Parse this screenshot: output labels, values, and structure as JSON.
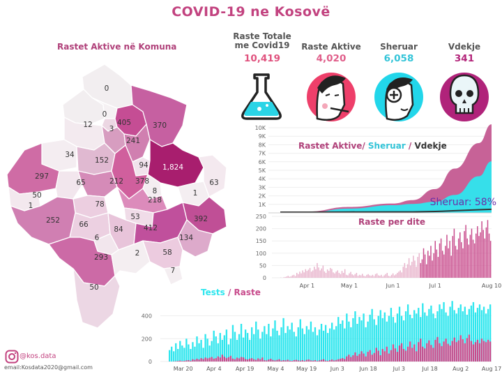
{
  "title": "COVID-19 ne Kosovë",
  "map": {
    "title": "Rastet Aktive në Komuna",
    "values": [
      "0",
      "0",
      "12",
      "3",
      "405",
      "370",
      "34",
      "241",
      "152",
      "94",
      "1,824",
      "297",
      "65",
      "212",
      "378",
      "63",
      "50",
      "8",
      "1",
      "1",
      "78",
      "218",
      "252",
      "66",
      "53",
      "392",
      "84",
      "412",
      "6",
      "134",
      "293",
      "2",
      "58",
      "7",
      "50"
    ]
  },
  "stats": [
    {
      "label_line1": "Raste Totale",
      "label_line2": "me Covid19",
      "value": "10,419",
      "color": "#e0527e",
      "icon": "flask-icon"
    },
    {
      "label_line1": "Raste Aktive",
      "label_line2": "",
      "value": "4,020",
      "color": "#e05e8a",
      "icon": "sick-face-icon"
    },
    {
      "label_line1": "Sheruar",
      "label_line2": "",
      "value": "6,058",
      "color": "#33c4d8",
      "icon": "healed-face-icon"
    },
    {
      "label_line1": "Vdekje",
      "label_line2": "",
      "value": "341",
      "color": "#b3247a",
      "icon": "skull-icon"
    }
  ],
  "footer": {
    "instagram": "@kos.data",
    "email": "email:Kosdata2020@gmail.com"
  },
  "chart_data": [
    {
      "type": "area",
      "title_parts": [
        "Rastet Aktive/",
        "Sheruar",
        "/",
        "Vdekje"
      ],
      "title_colors": [
        "#b0417a",
        "#33c4d8",
        "#b0417a",
        "#333333"
      ],
      "ylim": [
        0,
        10000
      ],
      "y_ticks": [
        "1K",
        "2K",
        "3K",
        "4K",
        "5K",
        "6K",
        "7K",
        "8K",
        "9K",
        "10K"
      ],
      "annotation": "Sheruar: 58%",
      "series": [
        {
          "name": "Rastet Aktive",
          "color": "#c45a91",
          "x": [
            "Mar 13",
            "Apr 1",
            "May 1",
            "Jun 1",
            "Jun 15",
            "Jul 1",
            "Jul 15",
            "Aug 1",
            "Aug 10"
          ],
          "values": [
            0,
            150,
            700,
            1100,
            1500,
            2800,
            5200,
            8200,
            10400
          ]
        },
        {
          "name": "Sheruar",
          "color": "#2ee6ee",
          "x": [
            "Mar 13",
            "Apr 1",
            "May 1",
            "Jun 1",
            "Jun 15",
            "Jul 1",
            "Jul 15",
            "Aug 1",
            "Aug 10"
          ],
          "values": [
            0,
            20,
            500,
            900,
            1050,
            1300,
            2100,
            4300,
            6058
          ]
        },
        {
          "name": "Vdekje",
          "color": "#333333",
          "x": [
            "Mar 13",
            "Apr 1",
            "May 1",
            "Jun 1",
            "Jun 15",
            "Jul 1",
            "Jul 15",
            "Aug 1",
            "Aug 10"
          ],
          "values": [
            0,
            5,
            25,
            30,
            35,
            80,
            170,
            290,
            341
          ]
        }
      ]
    },
    {
      "type": "bar",
      "title": "Raste per dite",
      "ylim": [
        0,
        250
      ],
      "y_ticks": [
        "0",
        "50",
        "100",
        "150",
        "200",
        "250"
      ],
      "x_ticks": [
        "Apr 1",
        "May 1",
        "Jun 1",
        "Jul 1",
        "Aug 10"
      ],
      "start": "Mar 13",
      "end": "Aug 10",
      "series": [
        {
          "name": "Raste",
          "color": "#c84b8c",
          "light_color": "#e8b4cc"
        }
      ],
      "values": [
        1,
        0,
        2,
        3,
        5,
        8,
        4,
        6,
        10,
        12,
        7,
        20,
        15,
        25,
        18,
        30,
        22,
        35,
        28,
        33,
        40,
        25,
        30,
        45,
        35,
        60,
        42,
        30,
        38,
        50,
        26,
        20,
        34,
        28,
        40,
        36,
        22,
        18,
        25,
        30,
        20,
        15,
        28,
        20,
        35,
        12,
        10,
        18,
        24,
        14,
        10,
        15,
        20,
        8,
        12,
        10,
        16,
        8,
        6,
        12,
        15,
        10,
        8,
        12,
        7,
        15,
        18,
        10,
        8,
        12,
        5,
        10,
        15,
        20,
        8,
        6,
        12,
        18,
        10,
        14,
        20,
        25,
        30,
        22,
        45,
        60,
        40,
        55,
        80,
        50,
        65,
        90,
        70,
        45,
        85,
        100,
        60,
        75,
        120,
        95,
        55,
        110,
        90,
        130,
        70,
        100,
        150,
        115,
        85,
        140,
        160,
        110,
        95,
        130,
        175,
        120,
        150,
        90,
        170,
        200,
        130,
        115,
        160,
        185,
        145,
        120,
        190,
        215,
        160,
        135,
        175,
        200,
        155,
        140,
        180,
        210,
        170,
        185,
        230,
        195,
        160,
        205,
        235,
        180,
        150
      ]
    },
    {
      "type": "bar",
      "title_parts": [
        "Tests",
        "/",
        "Raste"
      ],
      "title_colors": [
        "#2ee6ee",
        "#c84b8c",
        "#c84b8c"
      ],
      "ylim": [
        0,
        550
      ],
      "y_ticks": [
        "0",
        "200",
        "400"
      ],
      "x_ticks": [
        "Mar 20",
        "Apr 4",
        "Apr 19",
        "May 4",
        "May 19",
        "Jun 3",
        "Jun 18",
        "Jul 3",
        "Jul 18",
        "Aug 2",
        "Aug 17"
      ],
      "start": "Mar 13",
      "end": "Aug 17",
      "series": [
        {
          "name": "Tests",
          "color": "#2ee6ee",
          "values": [
            100,
            130,
            90,
            160,
            110,
            180,
            140,
            120,
            200,
            150,
            110,
            170,
            130,
            220,
            160,
            190,
            120,
            240,
            200,
            140,
            180,
            270,
            220,
            160,
            250,
            190,
            230,
            280,
            150,
            200,
            320,
            260,
            190,
            240,
            330,
            210,
            280,
            250,
            190,
            300,
            240,
            350,
            280,
            200,
            260,
            310,
            240,
            330,
            220,
            290,
            360,
            270,
            230,
            300,
            380,
            250,
            310,
            280,
            340,
            260,
            220,
            300,
            370,
            290,
            240,
            310,
            280,
            350,
            260,
            300,
            230,
            280,
            330,
            270,
            320,
            250,
            290,
            340,
            280,
            310,
            390,
            330,
            360,
            290,
            420,
            350,
            300,
            380,
            440,
            330,
            390,
            360,
            420,
            300,
            350,
            410,
            460,
            370,
            320,
            400,
            450,
            380,
            430,
            350,
            400,
            470,
            390,
            340,
            420,
            480,
            400,
            360,
            440,
            500,
            410,
            380,
            450,
            420,
            470,
            390,
            510,
            430,
            400,
            460,
            490,
            420,
            380,
            440,
            500,
            460,
            520,
            430,
            400,
            480,
            530,
            450,
            420,
            470,
            500,
            440,
            480,
            410,
            460,
            490,
            520,
            430,
            470,
            500,
            450,
            480,
            420,
            460,
            500
          ]
        },
        {
          "name": "Raste",
          "color": "#c84b8c",
          "values": [
            1,
            0,
            2,
            3,
            5,
            8,
            4,
            6,
            10,
            12,
            7,
            20,
            15,
            25,
            18,
            30,
            22,
            35,
            28,
            33,
            40,
            25,
            30,
            45,
            35,
            60,
            42,
            30,
            38,
            50,
            26,
            20,
            34,
            28,
            40,
            36,
            22,
            18,
            25,
            30,
            20,
            15,
            28,
            20,
            35,
            12,
            10,
            18,
            24,
            14,
            10,
            15,
            20,
            8,
            12,
            10,
            16,
            8,
            6,
            12,
            15,
            10,
            8,
            12,
            7,
            15,
            18,
            10,
            8,
            12,
            5,
            10,
            15,
            20,
            8,
            6,
            12,
            18,
            10,
            14,
            20,
            25,
            30,
            22,
            45,
            60,
            40,
            55,
            80,
            50,
            65,
            90,
            70,
            45,
            85,
            100,
            60,
            75,
            120,
            95,
            55,
            110,
            90,
            130,
            70,
            100,
            150,
            115,
            85,
            140,
            160,
            110,
            95,
            130,
            175,
            120,
            150,
            90,
            170,
            200,
            130,
            115,
            160,
            185,
            145,
            120,
            190,
            215,
            160,
            135,
            175,
            200,
            155,
            140,
            180,
            210,
            170,
            185,
            230,
            195,
            160,
            205,
            235,
            180,
            150,
            170,
            190,
            160,
            200,
            180,
            170,
            190,
            175
          ]
        }
      ]
    }
  ]
}
